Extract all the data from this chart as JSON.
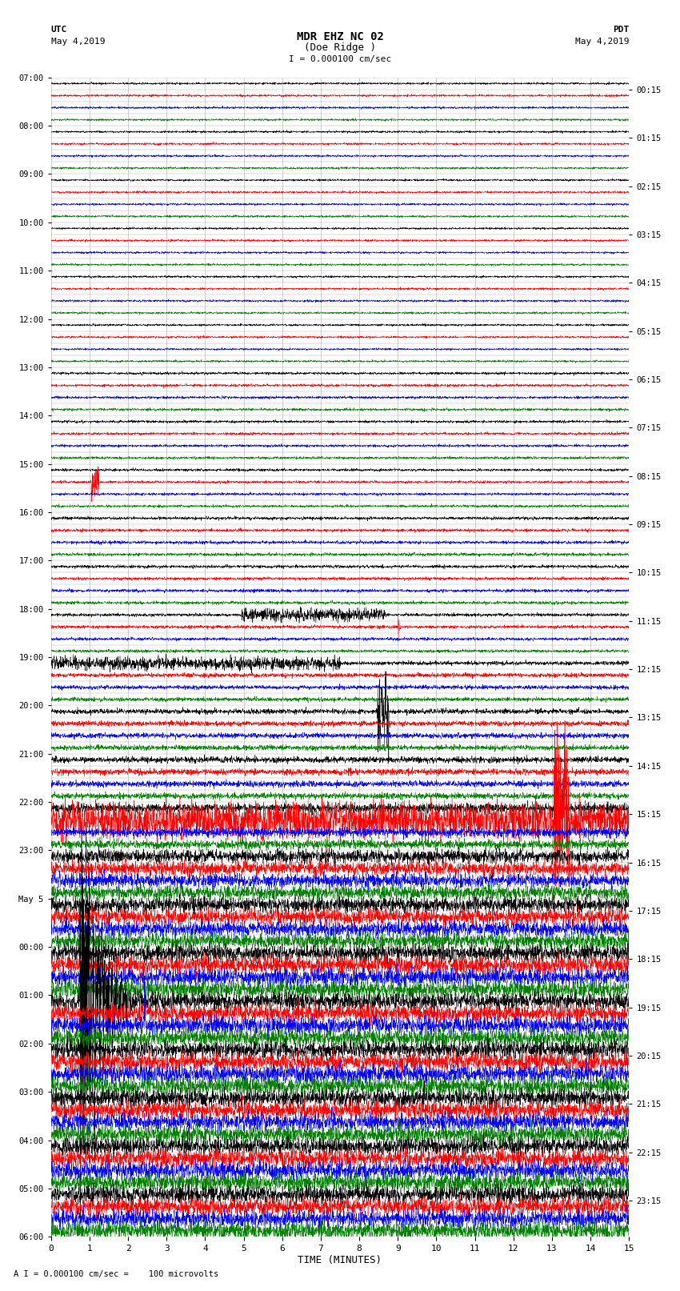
{
  "title_line1": "MDR EHZ NC 02",
  "title_line2": "(Doe Ridge )",
  "scale_label": "I = 0.000100 cm/sec",
  "footer_label": "A I = 0.000100 cm/sec =    100 microvolts",
  "utc_label": "UTC",
  "utc_date": "May 4,2019",
  "pdt_label": "PDT",
  "pdt_date": "May 4,2019",
  "xlabel": "TIME (MINUTES)",
  "left_times": [
    "07:00",
    "08:00",
    "09:00",
    "10:00",
    "11:00",
    "12:00",
    "13:00",
    "14:00",
    "15:00",
    "16:00",
    "17:00",
    "18:00",
    "19:00",
    "20:00",
    "21:00",
    "22:00",
    "23:00",
    "May 5",
    "00:00",
    "01:00",
    "02:00",
    "03:00",
    "04:00",
    "05:00",
    "06:00"
  ],
  "right_times": [
    "00:15",
    "01:15",
    "02:15",
    "03:15",
    "04:15",
    "05:15",
    "06:15",
    "07:15",
    "08:15",
    "09:15",
    "10:15",
    "11:15",
    "12:15",
    "13:15",
    "14:15",
    "15:15",
    "16:15",
    "17:15",
    "18:15",
    "19:15",
    "20:15",
    "21:15",
    "22:15",
    "23:15"
  ],
  "trace_colors": [
    "black",
    "red",
    "blue",
    "green"
  ],
  "n_rows": 96,
  "n_minutes": 15,
  "background_color": "white",
  "grid_color": "#aaaaaa",
  "seed": 42,
  "fig_width": 8.5,
  "fig_height": 16.13,
  "dpi": 100
}
